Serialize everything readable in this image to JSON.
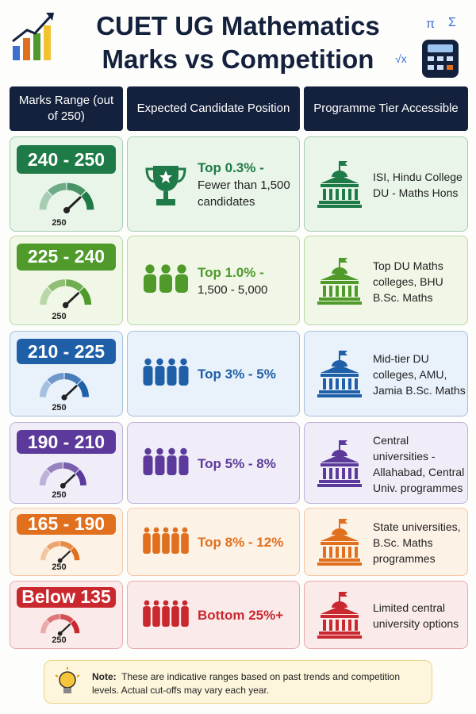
{
  "header": {
    "title": "CUET UG Mathematics Marks vs Competition",
    "decorations": [
      "π",
      "Σ",
      "√x"
    ]
  },
  "table": {
    "columns": [
      "Marks Range (out of 250)",
      "Expected Candidate Position",
      "Programme Tier Accessible"
    ],
    "rows": [
      {
        "range": "240 - 250",
        "gauge_label": 250,
        "position_highlight": "Top 0.3% -",
        "position_detail": "Fewer than 1,500 candidates",
        "programmes": "ISI, Hindu College DU - Maths Hons",
        "color": "#1e7a46",
        "tint": "#eaf5ea"
      },
      {
        "range": "225 - 240",
        "gauge_label": 250,
        "position_highlight": "Top 1.0% -",
        "position_detail": "1,500 - 5,000",
        "programmes": "Top DU Maths colleges, BHU B.Sc. Maths",
        "color": "#4f9a2a",
        "tint": "#f0f7e6"
      },
      {
        "range": "210 - 225",
        "gauge_label": 250,
        "position_highlight": "Top 3% - 5%",
        "programmes": "Mid-tier DU colleges, AMU, Jamia B.Sc. Maths",
        "color": "#1f5fa8",
        "tint": "#e9f1fa"
      },
      {
        "range": "190 - 210",
        "gauge_label": 250,
        "position_highlight": "Top 5% - 8%",
        "programmes": "Central universities - Allahabad, Central Univ. programmes",
        "color": "#5b3a9b",
        "tint": "#f1edf8"
      },
      {
        "range": "165 - 190",
        "gauge_label": 250,
        "position_highlight": "Top 8% - 12%",
        "programmes": "State universities, B.Sc. Maths programmes",
        "color": "#e0701e",
        "tint": "#fdf2e6"
      },
      {
        "range": "Below 135",
        "gauge_label": 250,
        "position_highlight": "Bottom 25%+",
        "programmes": "Limited central university options",
        "color": "#c8282e",
        "tint": "#fbeaea"
      }
    ]
  },
  "note": {
    "label": "Note:",
    "text": "These are indicative ranges based on past trends and competition levels. Actual cut-offs may vary each year."
  }
}
